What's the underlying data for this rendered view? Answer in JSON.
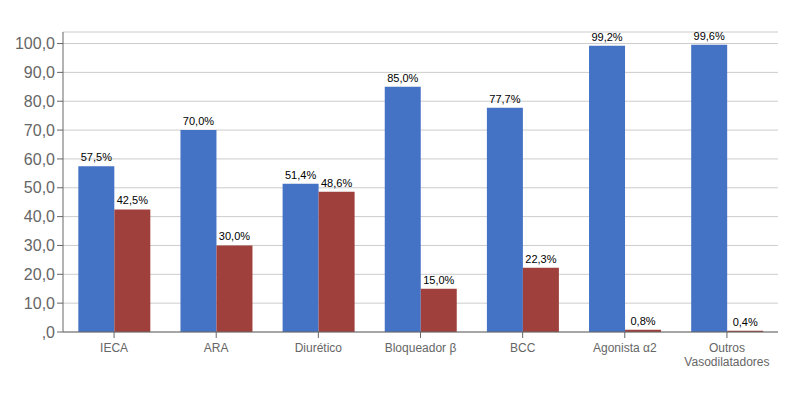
{
  "chart_data": {
    "type": "bar",
    "categories": [
      "IECA",
      "ARA",
      "Diurético",
      "Bloqueador β",
      "BCC",
      "Agonista α2",
      "Outros\nVasodilatadores"
    ],
    "series": [
      {
        "color": "#4472C4",
        "values": [
          57.5,
          70.0,
          51.4,
          85.0,
          77.7,
          99.2,
          99.6
        ],
        "value_labels": [
          "57,5%",
          "70,0%",
          "51,4%",
          "85,0%",
          "77,7%",
          "99,2%",
          "99,6%"
        ]
      },
      {
        "color": "#A0403C",
        "values": [
          42.5,
          30.0,
          48.6,
          15.0,
          22.3,
          0.8,
          0.4
        ],
        "value_labels": [
          "42,5%",
          "30,0%",
          "48,6%",
          "15,0%",
          "22,3%",
          "0,8%",
          "0,4%"
        ]
      }
    ],
    "ylim": [
      0,
      104
    ],
    "yticks": [
      {
        "value": 0,
        "label": ",0"
      },
      {
        "value": 10,
        "label": "10,0"
      },
      {
        "value": 20,
        "label": "20,0"
      },
      {
        "value": 30,
        "label": "30,0"
      },
      {
        "value": 40,
        "label": "40,0"
      },
      {
        "value": 50,
        "label": "50,0"
      },
      {
        "value": 60,
        "label": "60,0"
      },
      {
        "value": 70,
        "label": "70,0"
      },
      {
        "value": 80,
        "label": "80,0"
      },
      {
        "value": 90,
        "label": "90,0"
      },
      {
        "value": 100,
        "label": "100,0"
      }
    ],
    "grid": true,
    "data_labels": true
  }
}
